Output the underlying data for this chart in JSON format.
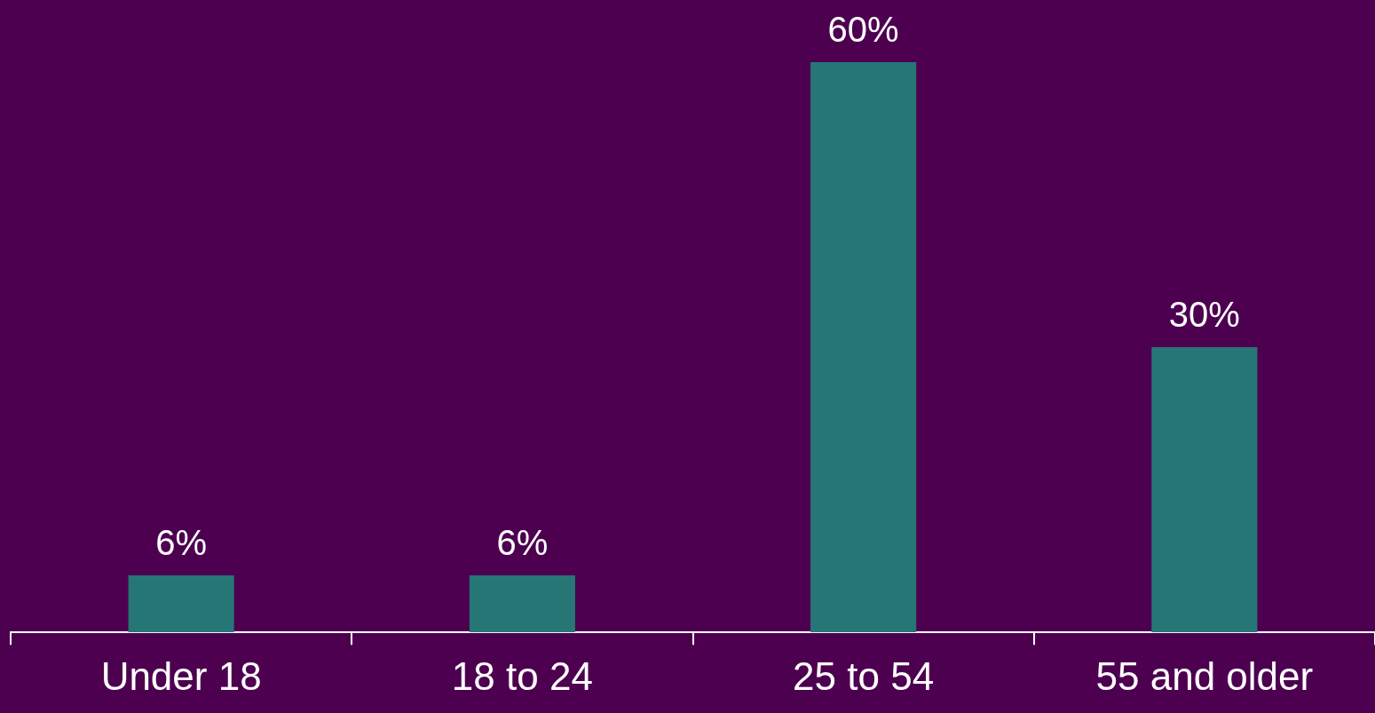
{
  "chart_data": {
    "type": "bar",
    "categories": [
      "Under 18",
      "18 to 24",
      "25 to 54",
      "55 and older"
    ],
    "values": [
      6,
      6,
      60,
      30
    ],
    "value_labels": [
      "6%",
      "6%",
      "60%",
      "30%"
    ],
    "color": "#267676",
    "grid": false,
    "legend": false
  }
}
